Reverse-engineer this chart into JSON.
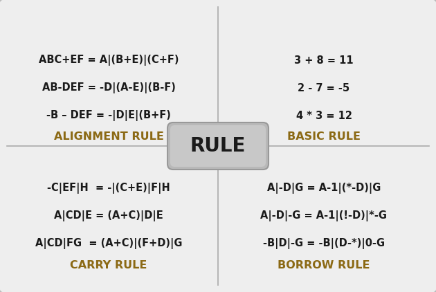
{
  "bg_color": "#e8e8e8",
  "panel_bg": "#eeeeee",
  "divider_color": "#aaaaaa",
  "text_color": "#1a1a1a",
  "label_color": "#8B6914",
  "rule_box_text": "RULE",
  "quadrants": [
    {
      "label": "ALIGNMENT RULE",
      "lines": [
        "ABC+EF = A|(B+E)|(C+F)",
        "AB-DEF = -D|(A-E)|(B-F)",
        "-B – DEF = -|D|E|(B+F)"
      ],
      "position": "top-left"
    },
    {
      "label": "BASIC RULE",
      "lines": [
        "3 + 8 = 11",
        "2 - 7 = -5",
        "4 * 3 = 12"
      ],
      "position": "top-right"
    },
    {
      "label": "CARRY RULE",
      "lines": [
        "-C|EF|H  = -|(C+E)|F|H",
        "A|CD|E = (A+C)|D|E",
        "A|CD|FG  = (A+C)|(F+D)|G"
      ],
      "position": "bottom-left"
    },
    {
      "label": "BORROW RULE",
      "lines": [
        "A|-D|G = A-1|(*-D)|G",
        "A|-D|-G = A-1|(!-D)|*-G",
        "-B|D|-G = -B|(D-*)|0-G"
      ],
      "position": "bottom-right"
    }
  ],
  "figsize": [
    6.3,
    4.22
  ],
  "dpi": 100
}
